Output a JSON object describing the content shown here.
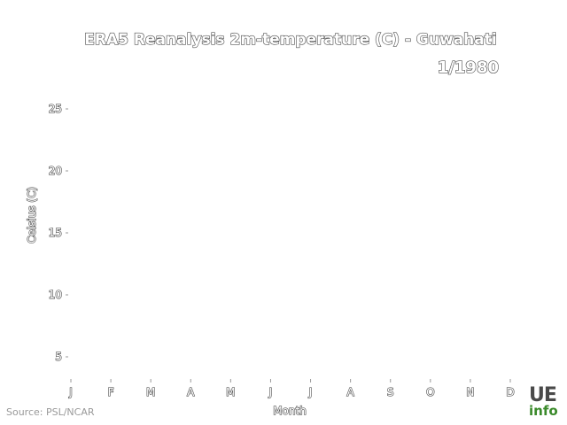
{
  "chart_data": {
    "type": "line",
    "title": "ERA5 Reanalysis 2m-temperature (C) - Guwahati",
    "frame_label": "1/1980",
    "xlabel": "Month",
    "ylabel": "Celsius (C)",
    "categories": [
      "J",
      "F",
      "M",
      "A",
      "M",
      "J",
      "J",
      "A",
      "S",
      "O",
      "N",
      "D"
    ],
    "yticks": [
      5,
      10,
      15,
      20,
      25
    ],
    "ylim": [
      3.5,
      27
    ],
    "series": [],
    "grid": false
  },
  "footer": {
    "source": "Source: PSL/NCAR",
    "logo_top": "UE",
    "logo_bottom": "info"
  }
}
